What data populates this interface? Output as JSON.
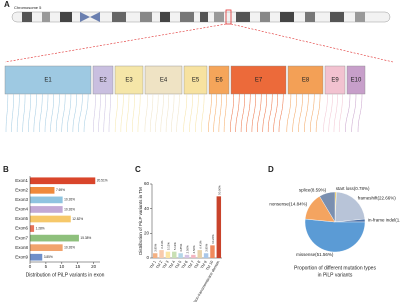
{
  "panel_a": {
    "panel_label": "A",
    "chromosome": "Chromosome 5",
    "exons": [
      "E1",
      "E2",
      "E3",
      "E4",
      "E5",
      "E6",
      "E7",
      "E8",
      "E9",
      "E10"
    ],
    "exon_colors": [
      "#9ec9e2",
      "#c9bfe0",
      "#f5e6a8",
      "#efe3c4",
      "#f7e2a0",
      "#f5a55a",
      "#ec6a3a",
      "#f3a056",
      "#f2c2d0",
      "#c79fca"
    ]
  },
  "chart_data": [
    {
      "type": "bar",
      "orientation": "horizontal",
      "panel_label": "B",
      "x_label": "Distribution of PiLP variants in exon",
      "categories": [
        "Exon1",
        "Exon2",
        "Exon3",
        "Exon4",
        "Exon5",
        "Exon6",
        "Exon7",
        "Exon8",
        "Exon9"
      ],
      "values": [
        20.51,
        7.69,
        10.26,
        10.26,
        12.82,
        1.28,
        15.38,
        10.26,
        3.85
      ],
      "value_labels": [
        "20.51%",
        "7.69%",
        "10.26%",
        "10.26%",
        "12.82%",
        "1.28%",
        "15.38%",
        "10.26%",
        "3.85%"
      ],
      "colors": [
        "#d9452b",
        "#ef8a3c",
        "#8fc4e0",
        "#c2a9d6",
        "#f6c86a",
        "#e8745a",
        "#8ec07c",
        "#f1a36d",
        "#6f8fc9"
      ],
      "xlim": [
        0,
        22
      ],
      "xticks": [
        0,
        5,
        10,
        15,
        20
      ]
    },
    {
      "type": "bar",
      "orientation": "vertical",
      "panel_label": "C",
      "y_label": "Distribution of PiLP variants in TM",
      "categories": [
        "TM 1",
        "TM 2",
        "TM 3",
        "TM 4",
        "TM 5",
        "TM 6",
        "TM 7",
        "TM 8",
        "TM 9",
        "TM 10",
        "Non-transmembrane domain"
      ],
      "values": [
        3.85,
        6.41,
        5.13,
        5.13,
        3.85,
        2.56,
        2.56,
        6.41,
        3.85,
        10.26,
        50.0
      ],
      "value_labels": [
        "3.85%",
        "6.41%",
        "5.13%",
        "5.13%",
        "3.85%",
        "2.56%",
        "2.56%",
        "6.41%",
        "3.85%",
        "10.26%",
        "50.00%"
      ],
      "colors": [
        "#f4b183",
        "#f8cbad",
        "#fbe5a3",
        "#c9e0b4",
        "#b4d6e8",
        "#d5c4e4",
        "#f4b6c2",
        "#e7d1a8",
        "#a9c7e8",
        "#f08a5d",
        "#c9432b"
      ],
      "ylim": [
        0,
        60
      ],
      "yticks": [
        0,
        20,
        40,
        60
      ]
    },
    {
      "type": "pie",
      "panel_label": "D",
      "caption": [
        "Proportion of different mutation types",
        "in PiLP variants"
      ],
      "labels": [
        "start loss(0.78%)",
        "frameshift(22.66%)",
        "in-frame indel(1.56%)",
        "missense(51.56%)",
        "nonsense(14.84%)",
        "splice(8.59%)"
      ],
      "values": [
        0.78,
        22.66,
        1.56,
        51.56,
        14.84,
        8.59
      ],
      "colors": [
        "#e8c040",
        "#b8c4d8",
        "#4a6fa5",
        "#5b9bd5",
        "#f4a460",
        "#7a8fb0"
      ]
    }
  ]
}
